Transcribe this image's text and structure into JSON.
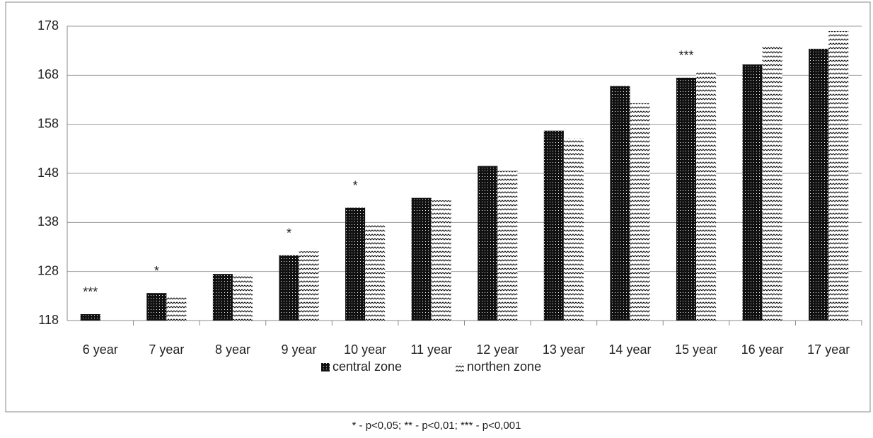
{
  "chart_data": {
    "type": "bar",
    "categories": [
      "6 year",
      "7 year",
      "8 year",
      "9 year",
      "10 year",
      "11 year",
      "12 year",
      "13 year",
      "14 year",
      "15 year",
      "16 year",
      "17 year"
    ],
    "series": [
      {
        "name": "central zone",
        "color": "#111111",
        "values": [
          119.3,
          123.6,
          127.5,
          131.3,
          141,
          143,
          149.5,
          156.7,
          165.8,
          167.5,
          170.2,
          173.4
        ]
      },
      {
        "name": "northen zone",
        "color": "#ffffff",
        "values": [
          null,
          122.8,
          127.5,
          132.1,
          137.8,
          142.5,
          148.5,
          155.2,
          162.3,
          168.6,
          174.1,
          177
        ]
      }
    ],
    "significance": [
      "***",
      "*",
      null,
      "*",
      "*",
      null,
      null,
      null,
      null,
      "***",
      null,
      null
    ],
    "ylim": [
      118,
      178
    ],
    "yticks": [
      118,
      128,
      138,
      148,
      158,
      168,
      178
    ],
    "grid": true,
    "legend": "bottom",
    "footnote": "* - p<0,05; ** - p<0,01; *** - p<0,001"
  }
}
